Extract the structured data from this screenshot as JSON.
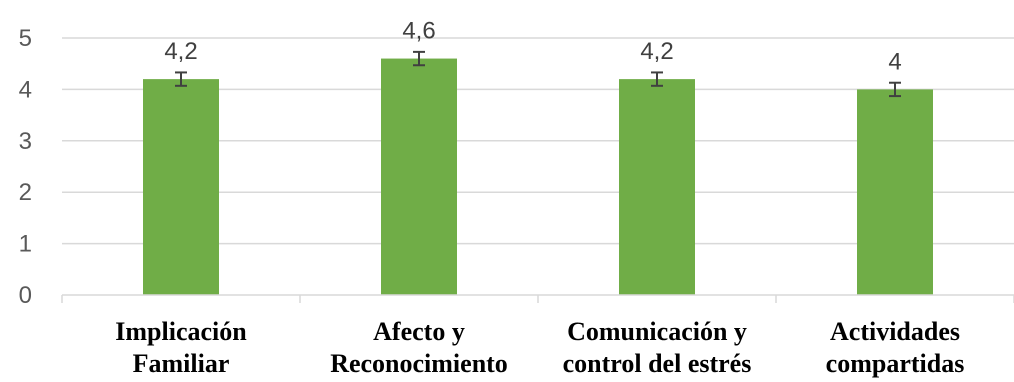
{
  "chart_data": {
    "type": "bar",
    "categories": [
      [
        "Implicación",
        "Familiar"
      ],
      [
        "Afecto y",
        "Reconocimiento"
      ],
      [
        "Comunicación y",
        "control del estrés"
      ],
      [
        "Actividades",
        "compartidas"
      ]
    ],
    "values": [
      4.2,
      4.6,
      4.2,
      4.0
    ],
    "data_labels": [
      "4,2",
      "4,6",
      "4,2",
      "4"
    ],
    "errors": [
      0.13,
      0.13,
      0.13,
      0.13
    ],
    "ylim": [
      0,
      5
    ],
    "yticks": [
      0,
      1,
      2,
      3,
      4,
      5
    ],
    "ytick_labels": [
      "0",
      "1",
      "2",
      "3",
      "4",
      "5"
    ],
    "grid": true,
    "legend": "none",
    "bar_color": "#70ad47",
    "title": "",
    "xlabel": "",
    "ylabel": ""
  }
}
